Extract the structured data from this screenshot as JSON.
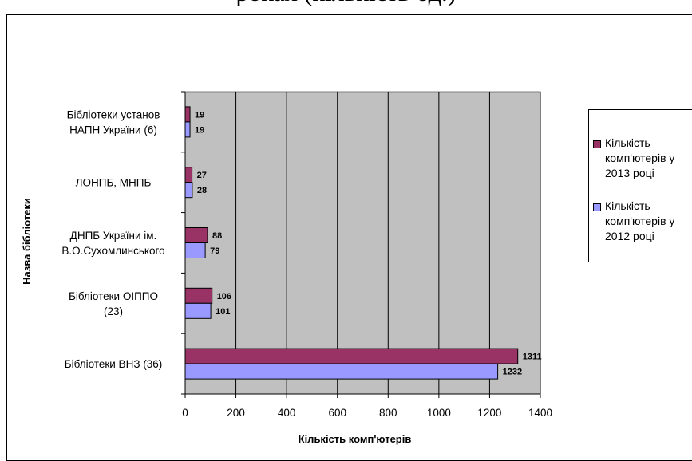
{
  "header": {
    "title_fragment": "роках (кількість од.)"
  },
  "chart_data": {
    "type": "bar",
    "orientation": "horizontal",
    "categories": [
      "Бібліотеки установ\nНАПН України (6)",
      "ЛОНПБ, МНПБ",
      "ДНПБ України ім.\nВ.О.Сухомлинського",
      "Бібліотеки ОІППО\n(23)",
      "Бібліотеки ВНЗ (36)"
    ],
    "series": [
      {
        "name": "Кількість\nкомп'ютерів у\n2013 році",
        "values": [
          19,
          27,
          88,
          106,
          1311
        ],
        "color": "#993366"
      },
      {
        "name": "Кількість\nкомп'ютерів у\n2012 році",
        "values": [
          19,
          28,
          79,
          101,
          1232
        ],
        "color": "#9999ff"
      }
    ],
    "xlabel": "Кількість комп'ютерів",
    "ylabel": "Назва бібліотеки",
    "xlim": [
      0,
      1400
    ],
    "xticks": [
      0,
      200,
      400,
      600,
      800,
      1000,
      1200,
      1400
    ],
    "grid": true,
    "plot_background": "#c0c0c0",
    "legend_position": "right"
  }
}
